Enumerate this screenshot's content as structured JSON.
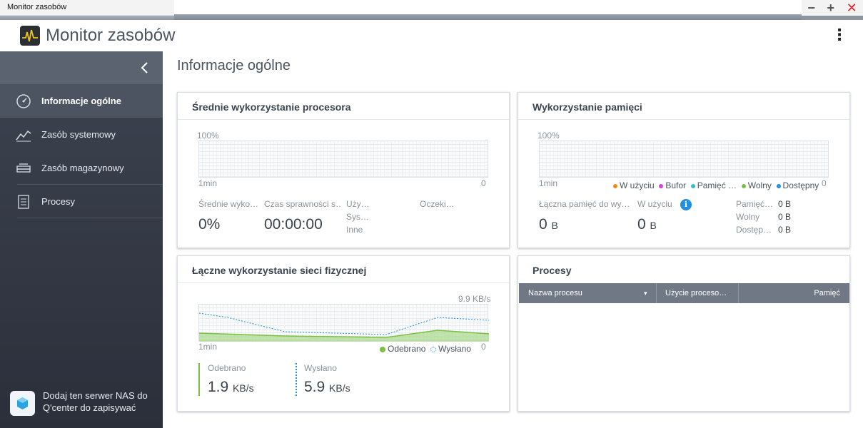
{
  "window": {
    "tab_title": "Monitor zasobów",
    "minimize": "−",
    "maximize": "+",
    "close": "✕"
  },
  "app": {
    "title": "Monitor zasobów",
    "menu_icon": "kebab-menu-icon"
  },
  "sidebar": {
    "collapse_icon": "chevron-left-icon",
    "items": [
      {
        "label": "Informacje ogólne",
        "icon": "gauge-icon",
        "active": true
      },
      {
        "label": "Zasób systemowy",
        "icon": "line-chart-icon",
        "active": false
      },
      {
        "label": "Zasób magazynowy",
        "icon": "storage-icon",
        "active": false
      },
      {
        "label": "Procesy",
        "icon": "document-list-icon",
        "active": false
      }
    ],
    "qcenter_text": "Dodaj ten serwer NAS do Q'center do zapisywać"
  },
  "main": {
    "title": "Informacje ogólne"
  },
  "cpu": {
    "title": "Średnie wykorzystanie procesora",
    "y_top": "100%",
    "x_left": "1min",
    "y_bottom": "0",
    "avg_label": "Średnie wyko…",
    "avg_value": "0%",
    "uptime_label": "Czas sprawności s…",
    "uptime_value": "00:00:00",
    "user_label": "Uży…",
    "sys_label": "Sys…",
    "other_label": "Inne",
    "wait_label": "Oczeki…"
  },
  "memory": {
    "title": "Wykorzystanie pamięci",
    "y_top": "100%",
    "x_left": "1min",
    "y_bottom": "0",
    "legend": [
      {
        "label": "W użyciu",
        "color": "#f28b1e"
      },
      {
        "label": "Bufor",
        "color": "#d63fd8"
      },
      {
        "label": "Pamięć …",
        "color": "#2fc1c4"
      },
      {
        "label": "Wolny",
        "color": "#7bc043"
      },
      {
        "label": "Dostępny",
        "color": "#1f8fe0"
      }
    ],
    "total_label": "Łączna pamięć do wy…",
    "total_value": "0",
    "total_unit": "B",
    "used_label": "W użyciu",
    "used_value": "0",
    "used_unit": "B",
    "info_icon": "info-icon",
    "details": [
      {
        "label": "Pamięć…",
        "value": "0 B"
      },
      {
        "label": "Wolny",
        "value": "0 B"
      },
      {
        "label": "Dostęp…",
        "value": "0 B"
      }
    ]
  },
  "network": {
    "title": "Łączne wykorzystanie sieci fizycznej",
    "y_top": "9.9 KB/s",
    "x_left": "1min",
    "y_bottom": "0",
    "legend_received": "Odebrano",
    "legend_sent": "Wysłano",
    "received_label": "Odebrano",
    "received_value": "1.9",
    "received_unit": "KB/s",
    "sent_label": "Wysłano",
    "sent_value": "5.9",
    "sent_unit": "KB/s",
    "colors": {
      "received": "#7bc043",
      "sent": "#1f8fe0"
    }
  },
  "processes": {
    "title": "Procesy",
    "columns": [
      "Nazwa procesu",
      "Użycie proceso…",
      "Pamięć"
    ],
    "sort_icon": "sort-down-icon"
  }
}
